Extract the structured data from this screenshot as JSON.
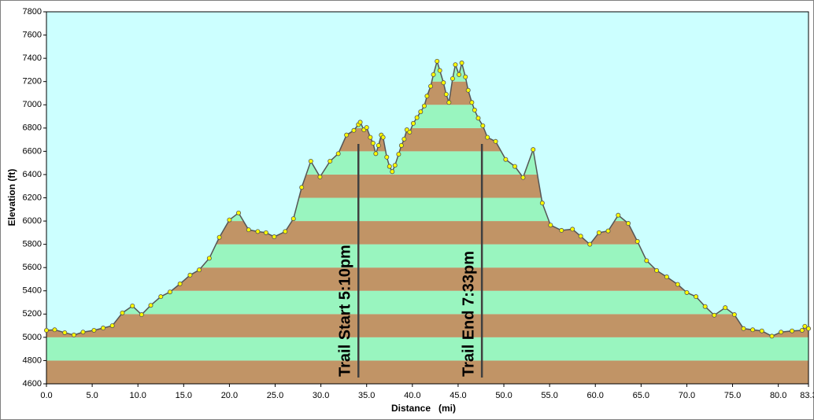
{
  "chart_data": {
    "type": "area-line",
    "x_label": "Distance   (mi)",
    "y_label": "Elevation (ft)",
    "xlim": [
      0,
      83.3
    ],
    "xticks": [
      0,
      5,
      10,
      15,
      20,
      25,
      30,
      35,
      40,
      45,
      50,
      55,
      60,
      65,
      70,
      75,
      80,
      83.3
    ],
    "xtick_labels": [
      "0.0",
      "5.0",
      "10.0",
      "15.0",
      "20.0",
      "25.0",
      "30.0",
      "35.0",
      "40.0",
      "45.0",
      "50.0",
      "55.0",
      "60.0",
      "65.0",
      "70.0",
      "75.0",
      "80.0",
      "83.3"
    ],
    "ylim": [
      4600,
      7800
    ],
    "yticks": [
      4600,
      4800,
      5000,
      5200,
      5400,
      5600,
      5800,
      6000,
      6200,
      6400,
      6600,
      6800,
      7000,
      7200,
      7400,
      7600,
      7800
    ],
    "grid": false,
    "background": "#ccffff",
    "band_colors": [
      "#c19466",
      "#99f5bf"
    ],
    "line_color": "#555555",
    "marker_color": "#ffff00",
    "x": [
      0,
      0.9,
      2.0,
      3.0,
      4.0,
      5.2,
      6.2,
      7.2,
      8.3,
      9.4,
      10.4,
      11.4,
      12.5,
      13.5,
      14.6,
      15.7,
      16.7,
      17.8,
      18.9,
      20.0,
      21.0,
      22.1,
      23.1,
      24.0,
      24.9,
      26.1,
      27.0,
      27.9,
      28.9,
      29.9,
      31.0,
      31.9,
      32.8,
      33.6,
      34.1,
      34.3,
      34.7,
      35.0,
      35.4,
      35.7,
      36.0,
      36.3,
      36.6,
      36.8,
      37.2,
      37.5,
      37.8,
      38.1,
      38.5,
      38.8,
      39.1,
      39.4,
      39.7,
      40.1,
      40.5,
      40.9,
      41.3,
      41.6,
      42.0,
      42.3,
      42.7,
      43.0,
      43.4,
      43.7,
      44.0,
      44.4,
      44.7,
      45.1,
      45.4,
      45.8,
      46.1,
      46.5,
      46.8,
      47.2,
      47.7,
      48.2,
      49.1,
      50.2,
      51.2,
      52.1,
      53.2,
      54.2,
      55.1,
      56.3,
      57.5,
      58.4,
      59.4,
      60.4,
      61.4,
      62.5,
      63.6,
      64.6,
      65.6,
      66.7,
      67.8,
      69.0,
      70.0,
      71.0,
      72.0,
      73.0,
      74.2,
      75.2,
      76.2,
      77.2,
      78.2,
      79.3,
      80.3,
      81.5,
      82.6,
      82.9,
      83.3
    ],
    "values": [
      5060,
      5065,
      5040,
      5020,
      5045,
      5060,
      5080,
      5100,
      5210,
      5270,
      5195,
      5275,
      5350,
      5390,
      5460,
      5535,
      5580,
      5680,
      5860,
      6010,
      6070,
      5925,
      5910,
      5900,
      5865,
      5910,
      6020,
      6290,
      6515,
      6380,
      6515,
      6580,
      6740,
      6780,
      6830,
      6850,
      6785,
      6805,
      6720,
      6670,
      6580,
      6650,
      6740,
      6720,
      6550,
      6470,
      6425,
      6480,
      6575,
      6650,
      6705,
      6785,
      6765,
      6840,
      6890,
      6940,
      6990,
      7075,
      7160,
      7260,
      7375,
      7295,
      7190,
      7090,
      7020,
      7225,
      7345,
      7260,
      7360,
      7240,
      7125,
      7020,
      6955,
      6885,
      6820,
      6720,
      6685,
      6530,
      6470,
      6375,
      6615,
      6155,
      5965,
      5920,
      5930,
      5870,
      5800,
      5900,
      5915,
      6050,
      5980,
      5825,
      5660,
      5575,
      5520,
      5455,
      5385,
      5350,
      5265,
      5190,
      5255,
      5195,
      5075,
      5065,
      5055,
      5010,
      5045,
      5055,
      5060,
      5095,
      5075
    ],
    "annotations": [
      {
        "text": "Trail Start 5:10pm",
        "x": 34.1
      },
      {
        "text": "Trail End 7:33pm",
        "x": 47.6
      }
    ]
  }
}
